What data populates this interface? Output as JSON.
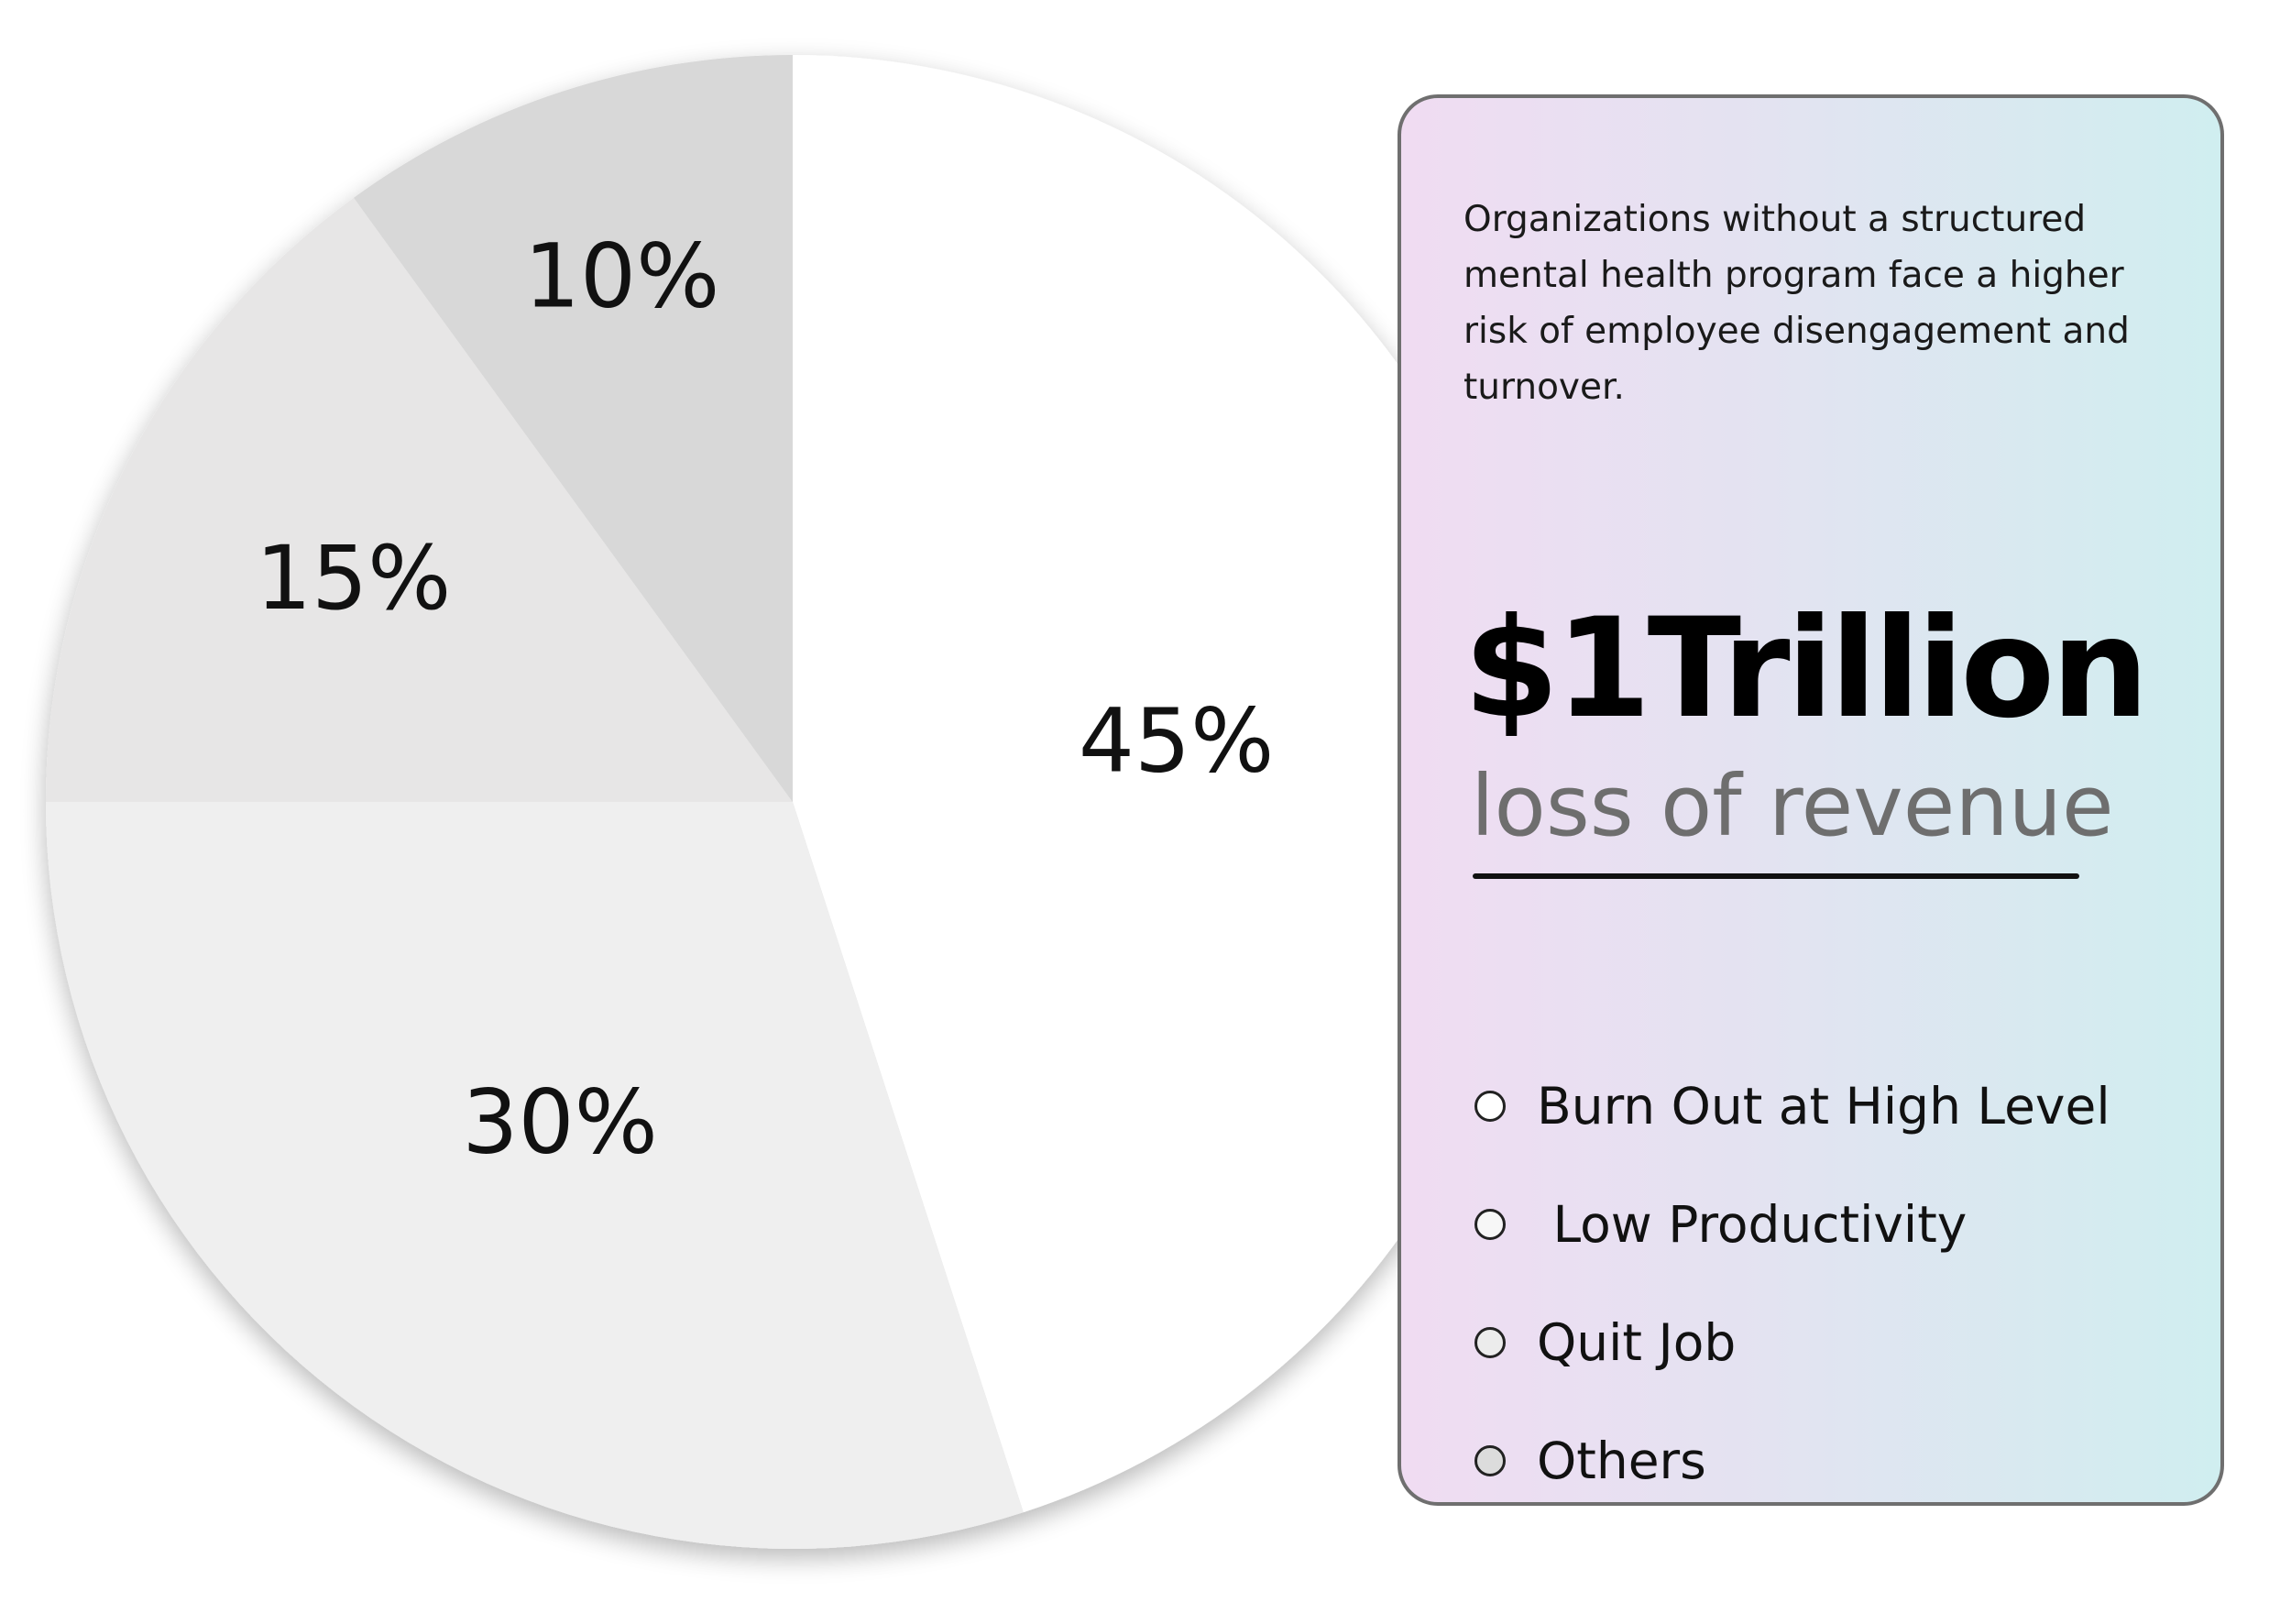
{
  "chart_data": {
    "type": "pie",
    "slices": [
      {
        "label": "45%",
        "value": 45,
        "color": "#ffffff"
      },
      {
        "label": "30%",
        "value": 30,
        "color": "#efefef"
      },
      {
        "label": "15%",
        "value": 15,
        "color": "#e7e6e6"
      },
      {
        "label": "10%",
        "value": 10,
        "color": "#d8d8d8"
      }
    ],
    "start": "12 o'clock",
    "direction": "clockwise",
    "legend_placement": "right"
  },
  "card": {
    "description": "Organizations without a structured mental health program face a higher risk of employee disengagement and turnover.",
    "headline": "$1Trillion",
    "subheadline": "loss of revenue",
    "legend": [
      {
        "label": "Burn Out at High Level",
        "color": "#ffffff"
      },
      {
        "label": " Low Productivity",
        "color": "#f7f7f7"
      },
      {
        "label": "Quit Job",
        "color": "#ececec"
      },
      {
        "label": "Others",
        "color": "#dcdcdc"
      }
    ],
    "gradient": [
      "#f0dcf2",
      "#d0eef0"
    ]
  }
}
